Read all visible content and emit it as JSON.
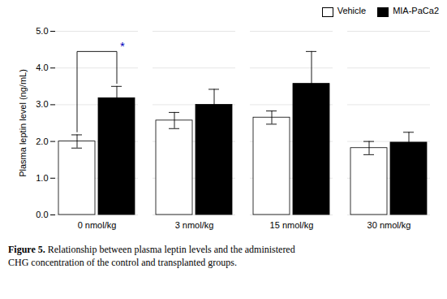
{
  "chart_data": {
    "type": "bar",
    "categories": [
      "0 nmol/kg",
      "3 nmol/kg",
      "15 nmol/kg",
      "30 nmol/kg"
    ],
    "series": [
      {
        "name": "Vehicle",
        "color": "#ffffff",
        "values": [
          2.0,
          2.57,
          2.65,
          1.82
        ],
        "errors": [
          0.18,
          0.22,
          0.18,
          0.18
        ]
      },
      {
        "name": "MIA-PaCa2",
        "color": "#000000",
        "values": [
          3.18,
          3.0,
          3.57,
          1.97
        ],
        "errors": [
          0.32,
          0.42,
          0.88,
          0.28
        ]
      }
    ],
    "ylabel": "Plasma leptin level (ng/mL)",
    "ylim": [
      0.0,
      5.0
    ],
    "yticks": [
      0,
      1,
      2,
      3,
      4,
      5
    ],
    "grid": true,
    "legend": "upper right",
    "annotations": [
      {
        "text": "*",
        "color": "#0000bb",
        "category": "0 nmol/kg",
        "y": 4.45,
        "bracket_ends": [
          2.26,
          3.58
        ]
      }
    ],
    "caption": {
      "bold": "Figure 5.",
      "text": "Relationship between plasma leptin levels and the administered\nCHG concentration of the control and transplanted groups."
    }
  }
}
